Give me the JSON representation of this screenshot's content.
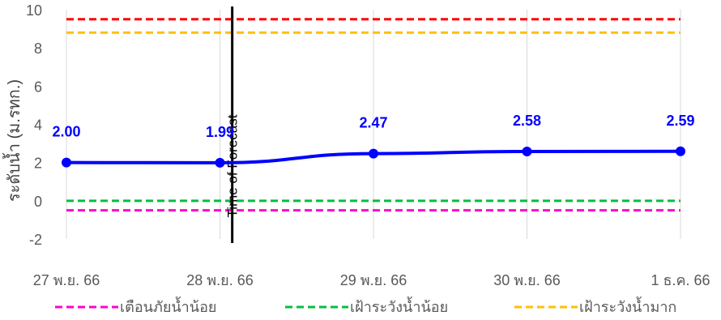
{
  "chart_data": {
    "type": "line",
    "ylabel": "ระดับน้ำ (ม.รทก.)",
    "ylim": [
      -2,
      10
    ],
    "yticks": [
      -2,
      0,
      2,
      4,
      6,
      8,
      10
    ],
    "ytick_labels": [
      "-2",
      "0",
      "2",
      "4",
      "6",
      "8",
      "10"
    ],
    "categories": [
      "27 พ.ย. 66",
      "28 พ.ย. 66",
      "29 พ.ย. 66",
      "30 พ.ย. 66",
      "1 ธ.ค. 66"
    ],
    "gridlines": {
      "vertical": true,
      "horizontal": false
    },
    "series": [
      {
        "values": [
          2.0,
          1.99,
          2.47,
          2.58,
          2.59
        ],
        "labels": [
          "2.00",
          "1.99",
          "2.47",
          "2.58",
          "2.59"
        ],
        "color": "#0000ff",
        "style": "solid"
      }
    ],
    "threshold_lines": [
      {
        "name": "เตือนภัยน้ำน้อย",
        "value": -0.5,
        "color": "#ff00cc",
        "in_legend": true
      },
      {
        "name": "เฝ้าระวังน้ำน้อย",
        "value": 0.0,
        "color": "#00c040",
        "in_legend": true
      },
      {
        "name": "เฝ้าระวังน้ำมาก",
        "value": 8.8,
        "color": "#ffc000",
        "in_legend": true
      },
      {
        "name": "",
        "value": 9.5,
        "color": "#ff0000",
        "in_legend": false
      }
    ],
    "forecast_marker": {
      "label": "Time of Forecast",
      "x_position": 1.08,
      "color": "#000000"
    },
    "legend_position": "bottom"
  }
}
